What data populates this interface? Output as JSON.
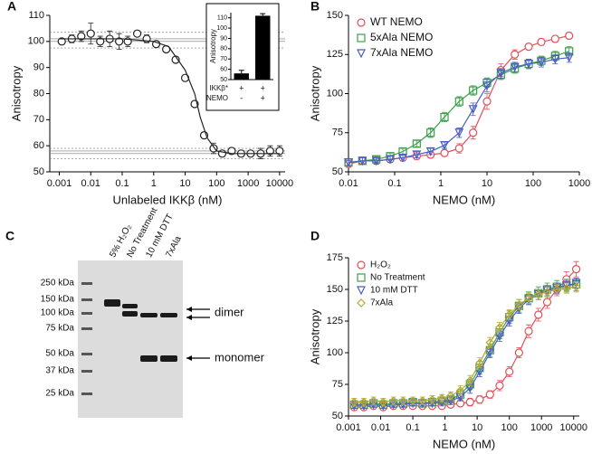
{
  "chart_data": [
    {
      "type": "scatter",
      "panel": "A",
      "xlabel": "Unlabeled IKKβ (nM)",
      "ylabel": "Anisotropy",
      "xscale": "log",
      "xlim": [
        0.0005,
        15000
      ],
      "xticks": [
        0.001,
        0.01,
        0.1,
        1,
        10,
        100,
        1000,
        10000
      ],
      "ylim": [
        50,
        110
      ],
      "yticks": [
        50,
        60,
        70,
        80,
        90,
        100,
        110
      ],
      "hlines": [
        {
          "value": 103.5,
          "dash": true
        },
        {
          "value": 101,
          "dash": false
        },
        {
          "value": 100,
          "dash": false
        },
        {
          "value": 97.5,
          "dash": true
        },
        {
          "value": 59,
          "dash": true
        },
        {
          "value": 58,
          "dash": false
        },
        {
          "value": 57,
          "dash": false
        },
        {
          "value": 55,
          "dash": true
        }
      ],
      "series": [
        {
          "color": "#222222",
          "marker": "circle",
          "line": false,
          "x": [
            0.0012,
            0.0025,
            0.005,
            0.01,
            0.02,
            0.04,
            0.08,
            0.15,
            0.3,
            0.6,
            1.2,
            2.5,
            5,
            10,
            20,
            40,
            80,
            150,
            300,
            600,
            1200,
            2500,
            5000,
            10000
          ],
          "values": [
            100,
            101,
            102,
            103,
            100,
            101,
            100,
            100,
            103,
            101,
            99,
            97,
            93,
            86,
            76,
            64,
            59,
            57,
            58,
            57,
            57,
            57,
            58,
            58
          ],
          "errors": [
            1,
            1.5,
            2,
            4,
            2,
            3,
            3,
            2,
            1,
            1.5,
            1,
            1,
            1,
            1,
            1,
            1,
            2,
            1,
            1,
            1,
            1,
            2,
            2,
            2
          ]
        },
        {
          "color": "#222222",
          "marker": "none",
          "line": true,
          "x": [
            0.001,
            0.01,
            0.1,
            1,
            3,
            10,
            20,
            30,
            50,
            100,
            300,
            1000,
            10000
          ],
          "values": [
            101,
            101,
            101,
            100,
            98,
            89,
            80,
            71,
            63,
            58,
            57,
            57,
            57
          ]
        }
      ]
    },
    {
      "type": "bar",
      "ylabel": "Anisotropy",
      "ylim": [
        50,
        115
      ],
      "yticks": [
        50,
        60,
        70,
        80,
        90,
        100,
        110
      ],
      "color": "#000000",
      "values": [
        56,
        112
      ],
      "errors": [
        3,
        2
      ],
      "table": [
        {
          "label": "IKKβ*",
          "cells": [
            "+",
            "+"
          ]
        },
        {
          "label": "NEMO",
          "cells": [
            "-",
            "+"
          ]
        }
      ]
    },
    {
      "type": "scatter",
      "panel": "B",
      "xlabel": "NEMO  (nM)",
      "ylabel": "Anisotropy",
      "xscale": "log",
      "legend": "upper left",
      "xlim": [
        0.01,
        1000
      ],
      "xticks": [
        0.01,
        0.1,
        1,
        10,
        100,
        1000
      ],
      "ylim": [
        50,
        150
      ],
      "yticks": [
        50,
        75,
        100,
        125,
        150
      ],
      "series": [
        {
          "name": "WT NEMO",
          "color": "#e0505a",
          "marker": "circle",
          "line": true,
          "x": [
            0.01,
            0.02,
            0.04,
            0.08,
            0.15,
            0.3,
            0.6,
            1.2,
            2.5,
            5,
            10,
            20,
            40,
            80,
            150,
            300,
            600
          ],
          "values": [
            55,
            57,
            57,
            58,
            59,
            60,
            61,
            62,
            65,
            75,
            95,
            115,
            125,
            130,
            133,
            135,
            137
          ],
          "errors": [
            2,
            2,
            2,
            2,
            2,
            2,
            2,
            2,
            3,
            4,
            5,
            4,
            3,
            2,
            2,
            2,
            2
          ]
        },
        {
          "name": "5xAla NEMO",
          "color": "#3aa04a",
          "marker": "square",
          "line": true,
          "x": [
            0.01,
            0.02,
            0.04,
            0.08,
            0.15,
            0.3,
            0.6,
            1.2,
            2.5,
            5,
            10,
            20,
            40,
            80,
            150,
            300,
            600
          ],
          "values": [
            56,
            57,
            58,
            60,
            63,
            68,
            75,
            85,
            95,
            102,
            107,
            112,
            116,
            119,
            121,
            124,
            127
          ],
          "errors": [
            2,
            2,
            2,
            2,
            2,
            2,
            3,
            3,
            3,
            3,
            3,
            3,
            3,
            3,
            3,
            3,
            3
          ]
        },
        {
          "name": "7xAla NEMO",
          "color": "#4b5cc4",
          "marker": "triangle",
          "line": true,
          "x": [
            0.01,
            0.02,
            0.04,
            0.08,
            0.15,
            0.3,
            0.6,
            1.2,
            2.5,
            5,
            10,
            20,
            40,
            80,
            150,
            300,
            600
          ],
          "values": [
            56,
            57,
            57,
            58,
            59,
            61,
            63,
            67,
            75,
            90,
            105,
            113,
            117,
            119,
            120,
            122,
            123
          ],
          "errors": [
            2,
            2,
            2,
            2,
            2,
            2,
            2,
            2,
            3,
            4,
            4,
            3,
            3,
            3,
            3,
            3,
            3
          ]
        }
      ]
    },
    {
      "type": "scatter",
      "panel": "D",
      "xlabel": "NEMO (nM)",
      "ylabel": "Anisotropy",
      "xscale": "log",
      "legend": "upper left",
      "xlim": [
        0.001,
        15000
      ],
      "xticks": [
        0.001,
        0.01,
        0.1,
        1,
        10,
        100,
        1000,
        10000
      ],
      "ylim": [
        50,
        175
      ],
      "yticks": [
        50,
        75,
        100,
        125,
        150,
        175
      ],
      "series": [
        {
          "name": "H₂O₂",
          "color": "#e0505a",
          "marker": "circle",
          "line": true,
          "x": [
            0.0015,
            0.003,
            0.006,
            0.012,
            0.025,
            0.05,
            0.1,
            0.2,
            0.4,
            0.8,
            1.5,
            3,
            6,
            12,
            25,
            50,
            100,
            200,
            400,
            800,
            1500,
            3000,
            6000,
            12000
          ],
          "values": [
            57,
            57,
            58,
            57,
            58,
            58,
            58,
            58,
            58,
            58,
            59,
            60,
            61,
            63,
            67,
            74,
            85,
            100,
            117,
            130,
            140,
            150,
            158,
            166
          ],
          "errors": [
            2,
            2,
            2,
            2,
            2,
            2,
            2,
            2,
            2,
            2,
            2,
            2,
            3,
            3,
            3,
            4,
            4,
            4,
            5,
            5,
            5,
            5,
            6,
            6
          ]
        },
        {
          "name": "No Treatment",
          "color": "#3aa04a",
          "marker": "square",
          "line": true,
          "x": [
            0.0015,
            0.003,
            0.006,
            0.012,
            0.025,
            0.05,
            0.1,
            0.2,
            0.4,
            0.8,
            1.5,
            3,
            6,
            12,
            25,
            50,
            100,
            200,
            400,
            800,
            1500,
            3000,
            6000,
            12000
          ],
          "values": [
            59,
            59,
            60,
            59,
            60,
            60,
            61,
            60,
            61,
            62,
            63,
            67,
            75,
            88,
            102,
            116,
            128,
            137,
            143,
            147,
            150,
            152,
            153,
            154
          ],
          "errors": [
            3,
            3,
            3,
            3,
            3,
            3,
            3,
            3,
            3,
            3,
            3,
            4,
            4,
            5,
            5,
            5,
            5,
            5,
            5,
            5,
            5,
            5,
            5,
            5
          ]
        },
        {
          "name": "10 mM DTT",
          "color": "#4b5cc4",
          "marker": "triangle",
          "line": true,
          "x": [
            0.0015,
            0.003,
            0.006,
            0.012,
            0.025,
            0.05,
            0.1,
            0.2,
            0.4,
            0.8,
            1.5,
            3,
            6,
            12,
            25,
            50,
            100,
            200,
            400,
            800,
            1500,
            3000,
            6000,
            12000
          ],
          "values": [
            58,
            58,
            59,
            58,
            59,
            59,
            60,
            60,
            60,
            61,
            62,
            65,
            72,
            85,
            100,
            113,
            125,
            135,
            142,
            146,
            149,
            151,
            153,
            155
          ],
          "errors": [
            2,
            2,
            2,
            2,
            2,
            2,
            2,
            2,
            2,
            3,
            3,
            3,
            4,
            4,
            4,
            4,
            4,
            4,
            4,
            4,
            4,
            4,
            4,
            4
          ]
        },
        {
          "name": "7xAla",
          "color": "#b8a838",
          "marker": "diamond",
          "line": true,
          "x": [
            0.0015,
            0.003,
            0.006,
            0.012,
            0.025,
            0.05,
            0.1,
            0.2,
            0.4,
            0.8,
            1.5,
            3,
            6,
            12,
            25,
            50,
            100,
            200,
            400,
            800,
            1500,
            3000,
            6000,
            12000
          ],
          "values": [
            61,
            61,
            62,
            61,
            62,
            62,
            62,
            62,
            63,
            64,
            66,
            70,
            78,
            92,
            108,
            120,
            130,
            138,
            143,
            146,
            148,
            150,
            151,
            152
          ],
          "errors": [
            3,
            3,
            3,
            3,
            3,
            3,
            3,
            3,
            3,
            3,
            3,
            4,
            4,
            4,
            4,
            4,
            4,
            4,
            4,
            4,
            4,
            4,
            4,
            4
          ]
        }
      ]
    }
  ],
  "gel": {
    "panel": "C",
    "ladder": [
      "250 kDa",
      "150 kDa",
      "100 kDa",
      "75 kDa",
      "50 kDa",
      "37 kDa",
      "25 kDa"
    ],
    "lanes": [
      "5% H₂O₂",
      "No Treatment",
      "10 mM DTT",
      "7xAla"
    ],
    "annotations": [
      "dimer",
      "monomer"
    ]
  }
}
